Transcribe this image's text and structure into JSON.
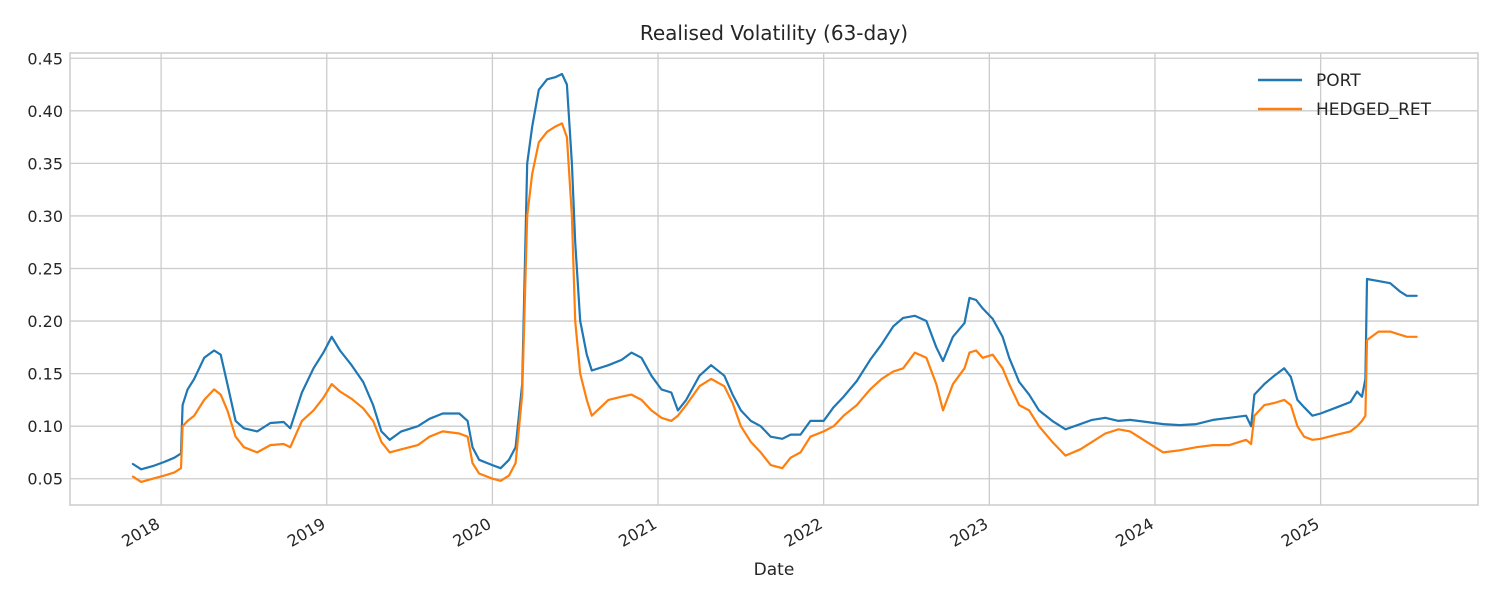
{
  "chart_data": {
    "type": "line",
    "title": "Realised Volatility (63-day)",
    "xlabel": "Date",
    "ylabel": "",
    "xlim": [
      2017.45,
      2025.95
    ],
    "ylim": [
      0.025,
      0.455
    ],
    "yticks": [
      0.05,
      0.1,
      0.15,
      0.2,
      0.25,
      0.3,
      0.35,
      0.4,
      0.45
    ],
    "ytick_labels": [
      "0.05",
      "0.10",
      "0.15",
      "0.20",
      "0.25",
      "0.30",
      "0.35",
      "0.40",
      "0.45"
    ],
    "xticks": [
      2018,
      2019,
      2020,
      2021,
      2022,
      2023,
      2024,
      2025
    ],
    "xtick_labels": [
      "2018",
      "2019",
      "2020",
      "2021",
      "2022",
      "2023",
      "2024",
      "2025"
    ],
    "grid": true,
    "legend_position": "top-right",
    "series": [
      {
        "name": "PORT",
        "color": "#1f77b4",
        "points": [
          [
            2017.83,
            0.064
          ],
          [
            2017.88,
            0.059
          ],
          [
            2017.95,
            0.062
          ],
          [
            2018.02,
            0.066
          ],
          [
            2018.08,
            0.07
          ],
          [
            2018.12,
            0.074
          ],
          [
            2018.13,
            0.12
          ],
          [
            2018.16,
            0.135
          ],
          [
            2018.2,
            0.145
          ],
          [
            2018.26,
            0.165
          ],
          [
            2018.32,
            0.172
          ],
          [
            2018.36,
            0.168
          ],
          [
            2018.4,
            0.14
          ],
          [
            2018.45,
            0.105
          ],
          [
            2018.5,
            0.098
          ],
          [
            2018.58,
            0.095
          ],
          [
            2018.66,
            0.103
          ],
          [
            2018.74,
            0.104
          ],
          [
            2018.78,
            0.098
          ],
          [
            2018.85,
            0.132
          ],
          [
            2018.92,
            0.155
          ],
          [
            2018.98,
            0.17
          ],
          [
            2019.03,
            0.185
          ],
          [
            2019.08,
            0.172
          ],
          [
            2019.15,
            0.158
          ],
          [
            2019.22,
            0.142
          ],
          [
            2019.28,
            0.12
          ],
          [
            2019.33,
            0.095
          ],
          [
            2019.38,
            0.087
          ],
          [
            2019.45,
            0.095
          ],
          [
            2019.55,
            0.1
          ],
          [
            2019.62,
            0.107
          ],
          [
            2019.7,
            0.112
          ],
          [
            2019.8,
            0.112
          ],
          [
            2019.85,
            0.105
          ],
          [
            2019.88,
            0.08
          ],
          [
            2019.92,
            0.068
          ],
          [
            2020.0,
            0.063
          ],
          [
            2020.05,
            0.06
          ],
          [
            2020.1,
            0.068
          ],
          [
            2020.14,
            0.08
          ],
          [
            2020.18,
            0.14
          ],
          [
            2020.21,
            0.35
          ],
          [
            2020.24,
            0.385
          ],
          [
            2020.28,
            0.42
          ],
          [
            2020.33,
            0.43
          ],
          [
            2020.38,
            0.432
          ],
          [
            2020.42,
            0.435
          ],
          [
            2020.45,
            0.425
          ],
          [
            2020.48,
            0.35
          ],
          [
            2020.5,
            0.275
          ],
          [
            2020.53,
            0.2
          ],
          [
            2020.57,
            0.168
          ],
          [
            2020.6,
            0.153
          ],
          [
            2020.7,
            0.158
          ],
          [
            2020.78,
            0.163
          ],
          [
            2020.84,
            0.17
          ],
          [
            2020.9,
            0.165
          ],
          [
            2020.96,
            0.148
          ],
          [
            2021.02,
            0.135
          ],
          [
            2021.08,
            0.132
          ],
          [
            2021.12,
            0.115
          ],
          [
            2021.17,
            0.125
          ],
          [
            2021.25,
            0.148
          ],
          [
            2021.32,
            0.158
          ],
          [
            2021.4,
            0.148
          ],
          [
            2021.45,
            0.13
          ],
          [
            2021.5,
            0.115
          ],
          [
            2021.56,
            0.105
          ],
          [
            2021.62,
            0.1
          ],
          [
            2021.68,
            0.09
          ],
          [
            2021.75,
            0.088
          ],
          [
            2021.8,
            0.092
          ],
          [
            2021.86,
            0.092
          ],
          [
            2021.92,
            0.105
          ],
          [
            2022.0,
            0.105
          ],
          [
            2022.06,
            0.118
          ],
          [
            2022.12,
            0.128
          ],
          [
            2022.2,
            0.143
          ],
          [
            2022.28,
            0.163
          ],
          [
            2022.35,
            0.178
          ],
          [
            2022.42,
            0.195
          ],
          [
            2022.48,
            0.203
          ],
          [
            2022.55,
            0.205
          ],
          [
            2022.62,
            0.2
          ],
          [
            2022.68,
            0.175
          ],
          [
            2022.72,
            0.162
          ],
          [
            2022.78,
            0.185
          ],
          [
            2022.85,
            0.198
          ],
          [
            2022.88,
            0.222
          ],
          [
            2022.92,
            0.22
          ],
          [
            2022.96,
            0.212
          ],
          [
            2023.02,
            0.202
          ],
          [
            2023.08,
            0.185
          ],
          [
            2023.12,
            0.165
          ],
          [
            2023.18,
            0.142
          ],
          [
            2023.24,
            0.13
          ],
          [
            2023.3,
            0.115
          ],
          [
            2023.38,
            0.105
          ],
          [
            2023.46,
            0.097
          ],
          [
            2023.55,
            0.102
          ],
          [
            2023.62,
            0.106
          ],
          [
            2023.7,
            0.108
          ],
          [
            2023.78,
            0.105
          ],
          [
            2023.85,
            0.106
          ],
          [
            2023.95,
            0.104
          ],
          [
            2024.05,
            0.102
          ],
          [
            2024.15,
            0.101
          ],
          [
            2024.25,
            0.102
          ],
          [
            2024.35,
            0.106
          ],
          [
            2024.45,
            0.108
          ],
          [
            2024.55,
            0.11
          ],
          [
            2024.58,
            0.1
          ],
          [
            2024.6,
            0.13
          ],
          [
            2024.66,
            0.14
          ],
          [
            2024.72,
            0.148
          ],
          [
            2024.78,
            0.155
          ],
          [
            2024.82,
            0.147
          ],
          [
            2024.86,
            0.125
          ],
          [
            2024.9,
            0.118
          ],
          [
            2024.95,
            0.11
          ],
          [
            2025.0,
            0.112
          ],
          [
            2025.1,
            0.118
          ],
          [
            2025.18,
            0.123
          ],
          [
            2025.22,
            0.133
          ],
          [
            2025.25,
            0.128
          ],
          [
            2025.27,
            0.145
          ],
          [
            2025.28,
            0.24
          ],
          [
            2025.35,
            0.238
          ],
          [
            2025.42,
            0.236
          ],
          [
            2025.48,
            0.228
          ],
          [
            2025.52,
            0.224
          ],
          [
            2025.58,
            0.224
          ]
        ]
      },
      {
        "name": "HEDGED_RET",
        "color": "#ff7f0e",
        "points": [
          [
            2017.83,
            0.052
          ],
          [
            2017.88,
            0.047
          ],
          [
            2017.95,
            0.05
          ],
          [
            2018.02,
            0.053
          ],
          [
            2018.08,
            0.056
          ],
          [
            2018.12,
            0.06
          ],
          [
            2018.13,
            0.1
          ],
          [
            2018.16,
            0.105
          ],
          [
            2018.2,
            0.11
          ],
          [
            2018.26,
            0.125
          ],
          [
            2018.32,
            0.135
          ],
          [
            2018.36,
            0.13
          ],
          [
            2018.4,
            0.115
          ],
          [
            2018.45,
            0.09
          ],
          [
            2018.5,
            0.08
          ],
          [
            2018.58,
            0.075
          ],
          [
            2018.66,
            0.082
          ],
          [
            2018.74,
            0.083
          ],
          [
            2018.78,
            0.08
          ],
          [
            2018.85,
            0.105
          ],
          [
            2018.92,
            0.115
          ],
          [
            2018.98,
            0.127
          ],
          [
            2019.03,
            0.14
          ],
          [
            2019.08,
            0.133
          ],
          [
            2019.15,
            0.126
          ],
          [
            2019.22,
            0.117
          ],
          [
            2019.28,
            0.105
          ],
          [
            2019.33,
            0.085
          ],
          [
            2019.38,
            0.075
          ],
          [
            2019.45,
            0.078
          ],
          [
            2019.55,
            0.082
          ],
          [
            2019.62,
            0.09
          ],
          [
            2019.7,
            0.095
          ],
          [
            2019.8,
            0.093
          ],
          [
            2019.85,
            0.09
          ],
          [
            2019.88,
            0.065
          ],
          [
            2019.92,
            0.055
          ],
          [
            2020.0,
            0.05
          ],
          [
            2020.05,
            0.048
          ],
          [
            2020.1,
            0.053
          ],
          [
            2020.14,
            0.065
          ],
          [
            2020.18,
            0.13
          ],
          [
            2020.21,
            0.3
          ],
          [
            2020.24,
            0.34
          ],
          [
            2020.28,
            0.37
          ],
          [
            2020.33,
            0.38
          ],
          [
            2020.38,
            0.385
          ],
          [
            2020.42,
            0.388
          ],
          [
            2020.45,
            0.375
          ],
          [
            2020.48,
            0.3
          ],
          [
            2020.5,
            0.2
          ],
          [
            2020.53,
            0.15
          ],
          [
            2020.57,
            0.125
          ],
          [
            2020.6,
            0.11
          ],
          [
            2020.7,
            0.125
          ],
          [
            2020.78,
            0.128
          ],
          [
            2020.84,
            0.13
          ],
          [
            2020.9,
            0.125
          ],
          [
            2020.96,
            0.115
          ],
          [
            2021.02,
            0.108
          ],
          [
            2021.08,
            0.105
          ],
          [
            2021.12,
            0.11
          ],
          [
            2021.17,
            0.12
          ],
          [
            2021.25,
            0.138
          ],
          [
            2021.32,
            0.145
          ],
          [
            2021.4,
            0.138
          ],
          [
            2021.45,
            0.122
          ],
          [
            2021.5,
            0.1
          ],
          [
            2021.56,
            0.085
          ],
          [
            2021.62,
            0.075
          ],
          [
            2021.68,
            0.063
          ],
          [
            2021.75,
            0.06
          ],
          [
            2021.8,
            0.07
          ],
          [
            2021.86,
            0.075
          ],
          [
            2021.92,
            0.09
          ],
          [
            2022.0,
            0.095
          ],
          [
            2022.06,
            0.1
          ],
          [
            2022.12,
            0.11
          ],
          [
            2022.2,
            0.12
          ],
          [
            2022.28,
            0.135
          ],
          [
            2022.35,
            0.145
          ],
          [
            2022.42,
            0.152
          ],
          [
            2022.48,
            0.155
          ],
          [
            2022.55,
            0.17
          ],
          [
            2022.62,
            0.165
          ],
          [
            2022.68,
            0.14
          ],
          [
            2022.72,
            0.115
          ],
          [
            2022.78,
            0.14
          ],
          [
            2022.85,
            0.155
          ],
          [
            2022.88,
            0.17
          ],
          [
            2022.92,
            0.172
          ],
          [
            2022.96,
            0.165
          ],
          [
            2023.02,
            0.168
          ],
          [
            2023.08,
            0.155
          ],
          [
            2023.12,
            0.14
          ],
          [
            2023.18,
            0.12
          ],
          [
            2023.24,
            0.115
          ],
          [
            2023.3,
            0.1
          ],
          [
            2023.38,
            0.085
          ],
          [
            2023.46,
            0.072
          ],
          [
            2023.55,
            0.078
          ],
          [
            2023.62,
            0.085
          ],
          [
            2023.7,
            0.093
          ],
          [
            2023.78,
            0.097
          ],
          [
            2023.85,
            0.095
          ],
          [
            2023.95,
            0.085
          ],
          [
            2024.05,
            0.075
          ],
          [
            2024.15,
            0.077
          ],
          [
            2024.25,
            0.08
          ],
          [
            2024.35,
            0.082
          ],
          [
            2024.45,
            0.082
          ],
          [
            2024.55,
            0.087
          ],
          [
            2024.58,
            0.083
          ],
          [
            2024.6,
            0.11
          ],
          [
            2024.66,
            0.12
          ],
          [
            2024.72,
            0.122
          ],
          [
            2024.78,
            0.125
          ],
          [
            2024.82,
            0.12
          ],
          [
            2024.86,
            0.1
          ],
          [
            2024.9,
            0.09
          ],
          [
            2024.95,
            0.087
          ],
          [
            2025.0,
            0.088
          ],
          [
            2025.1,
            0.092
          ],
          [
            2025.18,
            0.095
          ],
          [
            2025.22,
            0.1
          ],
          [
            2025.25,
            0.105
          ],
          [
            2025.27,
            0.11
          ],
          [
            2025.28,
            0.182
          ],
          [
            2025.35,
            0.19
          ],
          [
            2025.42,
            0.19
          ],
          [
            2025.48,
            0.187
          ],
          [
            2025.52,
            0.185
          ],
          [
            2025.58,
            0.185
          ]
        ]
      }
    ]
  }
}
